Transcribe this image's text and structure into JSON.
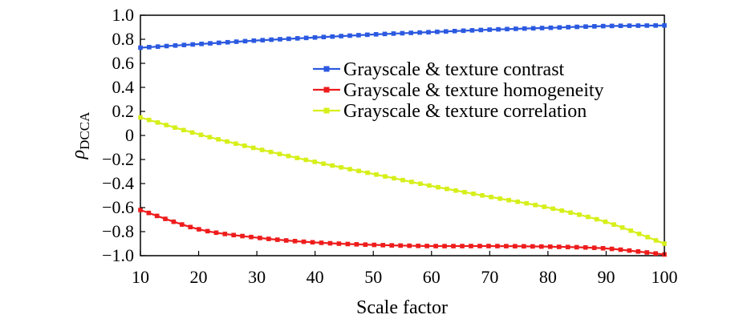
{
  "chart_data": {
    "type": "line",
    "title": "",
    "xlabel": "Scale factor",
    "ylabel_main": "ρ",
    "ylabel_sub": "DCCA",
    "xlim": [
      10,
      100
    ],
    "ylim": [
      -1.0,
      1.0
    ],
    "xticks": [
      10,
      20,
      30,
      40,
      50,
      60,
      70,
      80,
      90,
      100
    ],
    "xtick_labels": [
      "10",
      "20",
      "30",
      "40",
      "50",
      "60",
      "70",
      "80",
      "90",
      "100"
    ],
    "yticks": [
      -1.0,
      -0.8,
      -0.6,
      -0.4,
      -0.2,
      0,
      0.2,
      0.4,
      0.6,
      0.8,
      1.0
    ],
    "ytick_labels": [
      "−1.0",
      "−0.8",
      "−0.6",
      "−0.4",
      "−0.2",
      "0",
      "0.2",
      "0.4",
      "0.6",
      "0.8",
      "1.0"
    ],
    "grid": false,
    "legend_position": "upper-right",
    "x": [
      10,
      20,
      30,
      40,
      50,
      60,
      70,
      80,
      90,
      100
    ],
    "series": [
      {
        "name": "Grayscale & texture contrast",
        "color": "#2b59e0",
        "values": [
          0.73,
          0.76,
          0.79,
          0.815,
          0.84,
          0.86,
          0.88,
          0.895,
          0.91,
          0.915
        ]
      },
      {
        "name": "Grayscale & texture homogeneity",
        "color": "#ee1c1c",
        "values": [
          -0.62,
          -0.78,
          -0.85,
          -0.89,
          -0.91,
          -0.92,
          -0.92,
          -0.925,
          -0.94,
          -0.99
        ]
      },
      {
        "name": "Grayscale & texture correlation",
        "color": "#d6ef1a",
        "values": [
          0.15,
          0.01,
          -0.11,
          -0.22,
          -0.32,
          -0.42,
          -0.51,
          -0.6,
          -0.72,
          -0.9
        ]
      }
    ]
  }
}
